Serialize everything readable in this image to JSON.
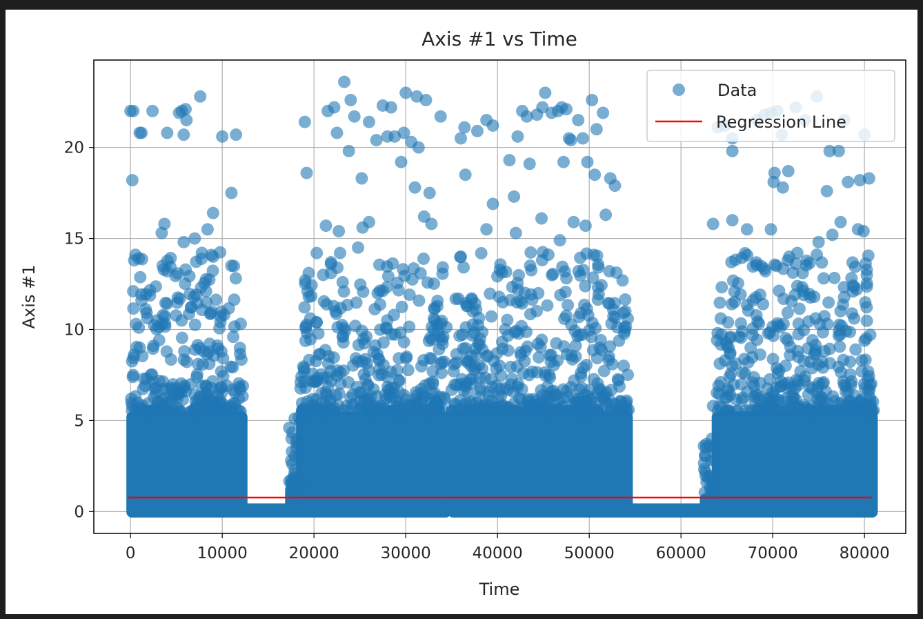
{
  "chart_data": {
    "type": "scatter",
    "title": "Axis #1 vs Time",
    "xlabel": "Time",
    "ylabel": "Axis #1",
    "xlim": [
      -4000,
      84500
    ],
    "ylim": [
      -1.2,
      24.8
    ],
    "xticks": [
      0,
      10000,
      20000,
      30000,
      40000,
      50000,
      60000,
      70000,
      80000
    ],
    "yticks": [
      0,
      5,
      10,
      15,
      20
    ],
    "grid": true,
    "legend": {
      "placement": "top-right",
      "entries": [
        "Data",
        "Regression Line"
      ]
    },
    "colors": {
      "data": "#1f77b4",
      "regression": "#ff0000"
    },
    "series": [
      {
        "name": "Data",
        "kind": "scatter",
        "dense_band": {
          "y_max": 5.5
        },
        "clusters": [
          {
            "x": [
              0,
              12300
            ],
            "y_max": 22.8,
            "dense_top": 9
          },
          {
            "x": [
              17300,
              18500
            ],
            "y_max": 4.6,
            "dense_top": 1.5
          },
          {
            "x": [
              18500,
              34500
            ],
            "y_max": 23.6,
            "dense_top": 9
          },
          {
            "x": [
              35000,
              54300
            ],
            "y_max": 23.0,
            "dense_top": 9
          },
          {
            "x": [
              62500,
              63800
            ],
            "y_max": 3.6,
            "dense_top": 1
          },
          {
            "x": [
              63800,
              81000
            ],
            "y_max": 22.8,
            "dense_top": 9
          }
        ],
        "baseline_segments": [
          {
            "x": [
              12300,
              17300
            ],
            "y": 0.45
          },
          {
            "x": [
              54300,
              62500
            ],
            "y": 0.45
          }
        ],
        "points": [
          [
            0,
            22.0
          ],
          [
            300,
            22.0
          ],
          [
            200,
            18.2
          ],
          [
            1000,
            20.8
          ],
          [
            1200,
            20.8
          ],
          [
            2400,
            22.0
          ],
          [
            4000,
            20.8
          ],
          [
            5300,
            21.9
          ],
          [
            5600,
            22.0
          ],
          [
            6000,
            22.1
          ],
          [
            6100,
            21.5
          ],
          [
            5800,
            20.7
          ],
          [
            7600,
            22.8
          ],
          [
            10000,
            20.6
          ],
          [
            11500,
            20.7
          ],
          [
            11000,
            17.5
          ],
          [
            9000,
            16.4
          ],
          [
            3700,
            15.8
          ],
          [
            3400,
            15.3
          ],
          [
            7000,
            15.0
          ],
          [
            5800,
            14.8
          ],
          [
            400,
            13.8
          ],
          [
            900,
            13.9
          ],
          [
            300,
            12.1
          ],
          [
            1200,
            11.6
          ],
          [
            3500,
            13.5
          ],
          [
            4000,
            13.2
          ],
          [
            9000,
            14.0
          ],
          [
            11000,
            13.5
          ],
          [
            8400,
            15.5
          ],
          [
            600,
            10.3
          ],
          [
            1000,
            9.0
          ],
          [
            300,
            7.5
          ],
          [
            2500,
            9.1
          ],
          [
            19000,
            21.4
          ],
          [
            19200,
            18.6
          ],
          [
            21500,
            22.0
          ],
          [
            22200,
            22.2
          ],
          [
            23300,
            23.6
          ],
          [
            24000,
            22.6
          ],
          [
            22500,
            20.8
          ],
          [
            23800,
            19.8
          ],
          [
            24400,
            21.7
          ],
          [
            25200,
            18.3
          ],
          [
            26000,
            21.4
          ],
          [
            26800,
            20.4
          ],
          [
            27500,
            22.3
          ],
          [
            28000,
            20.6
          ],
          [
            28400,
            22.2
          ],
          [
            28800,
            20.6
          ],
          [
            29500,
            19.2
          ],
          [
            29800,
            20.8
          ],
          [
            30000,
            23.0
          ],
          [
            30600,
            20.3
          ],
          [
            31200,
            22.8
          ],
          [
            32200,
            22.6
          ],
          [
            31400,
            20.0
          ],
          [
            32600,
            17.5
          ],
          [
            33800,
            21.7
          ],
          [
            31000,
            17.8
          ],
          [
            32000,
            16.2
          ],
          [
            24800,
            14.5
          ],
          [
            21300,
            15.7
          ],
          [
            20300,
            14.2
          ],
          [
            22700,
            15.4
          ],
          [
            25300,
            15.6
          ],
          [
            26000,
            15.9
          ],
          [
            32800,
            15.8
          ],
          [
            19300,
            12.1
          ],
          [
            21000,
            13.0
          ],
          [
            36000,
            20.5
          ],
          [
            36400,
            21.1
          ],
          [
            36500,
            18.5
          ],
          [
            37800,
            20.9
          ],
          [
            38800,
            21.5
          ],
          [
            39500,
            21.2
          ],
          [
            39500,
            16.9
          ],
          [
            41300,
            19.3
          ],
          [
            41800,
            17.3
          ],
          [
            42200,
            20.6
          ],
          [
            42700,
            22.0
          ],
          [
            43200,
            21.7
          ],
          [
            43500,
            19.1
          ],
          [
            44300,
            21.8
          ],
          [
            44900,
            22.2
          ],
          [
            45200,
            23.0
          ],
          [
            45900,
            21.9
          ],
          [
            46600,
            22.0
          ],
          [
            47000,
            22.2
          ],
          [
            47500,
            22.1
          ],
          [
            47200,
            19.2
          ],
          [
            47800,
            20.5
          ],
          [
            48000,
            20.4
          ],
          [
            48800,
            21.5
          ],
          [
            49300,
            20.5
          ],
          [
            49800,
            19.2
          ],
          [
            50300,
            22.6
          ],
          [
            50800,
            21.0
          ],
          [
            50600,
            18.5
          ],
          [
            51500,
            21.9
          ],
          [
            52300,
            18.3
          ],
          [
            52800,
            17.9
          ],
          [
            51800,
            16.3
          ],
          [
            49600,
            15.7
          ],
          [
            44800,
            16.1
          ],
          [
            42000,
            15.3
          ],
          [
            38800,
            15.5
          ],
          [
            36000,
            14.0
          ],
          [
            46800,
            14.9
          ],
          [
            48300,
            15.9
          ],
          [
            50500,
            14.1
          ],
          [
            52200,
            13.2
          ],
          [
            64000,
            21.1
          ],
          [
            64800,
            21.2
          ],
          [
            65600,
            20.5
          ],
          [
            65600,
            19.8
          ],
          [
            68300,
            21.5
          ],
          [
            69100,
            21.8
          ],
          [
            69800,
            21.9
          ],
          [
            70500,
            22.0
          ],
          [
            71000,
            20.7
          ],
          [
            72500,
            22.2
          ],
          [
            73500,
            21.5
          ],
          [
            74800,
            22.8
          ],
          [
            76200,
            19.8
          ],
          [
            77200,
            19.8
          ],
          [
            77800,
            21.5
          ],
          [
            78200,
            18.1
          ],
          [
            79500,
            18.2
          ],
          [
            80000,
            20.7
          ],
          [
            80500,
            18.3
          ],
          [
            75900,
            17.6
          ],
          [
            71700,
            18.7
          ],
          [
            70200,
            18.6
          ],
          [
            70100,
            18.1
          ],
          [
            71100,
            17.8
          ],
          [
            63500,
            15.8
          ],
          [
            65600,
            16.0
          ],
          [
            67200,
            15.5
          ],
          [
            69800,
            15.5
          ],
          [
            75000,
            14.8
          ],
          [
            76500,
            15.2
          ],
          [
            77400,
            15.9
          ],
          [
            79300,
            15.5
          ],
          [
            79900,
            15.4
          ],
          [
            65500,
            13.7
          ],
          [
            69200,
            13.2
          ],
          [
            71800,
            14.0
          ],
          [
            64000,
            9.8
          ],
          [
            64800,
            8.3
          ],
          [
            63500,
            5.8
          ],
          [
            62500,
            3.6
          ],
          [
            17300,
            4.6
          ],
          [
            17600,
            3.3
          ],
          [
            17900,
            2.3
          ]
        ]
      },
      {
        "name": "Regression Line",
        "kind": "line",
        "x": [
          -300,
          80800
        ],
        "y": [
          0.77,
          0.77
        ]
      }
    ]
  }
}
